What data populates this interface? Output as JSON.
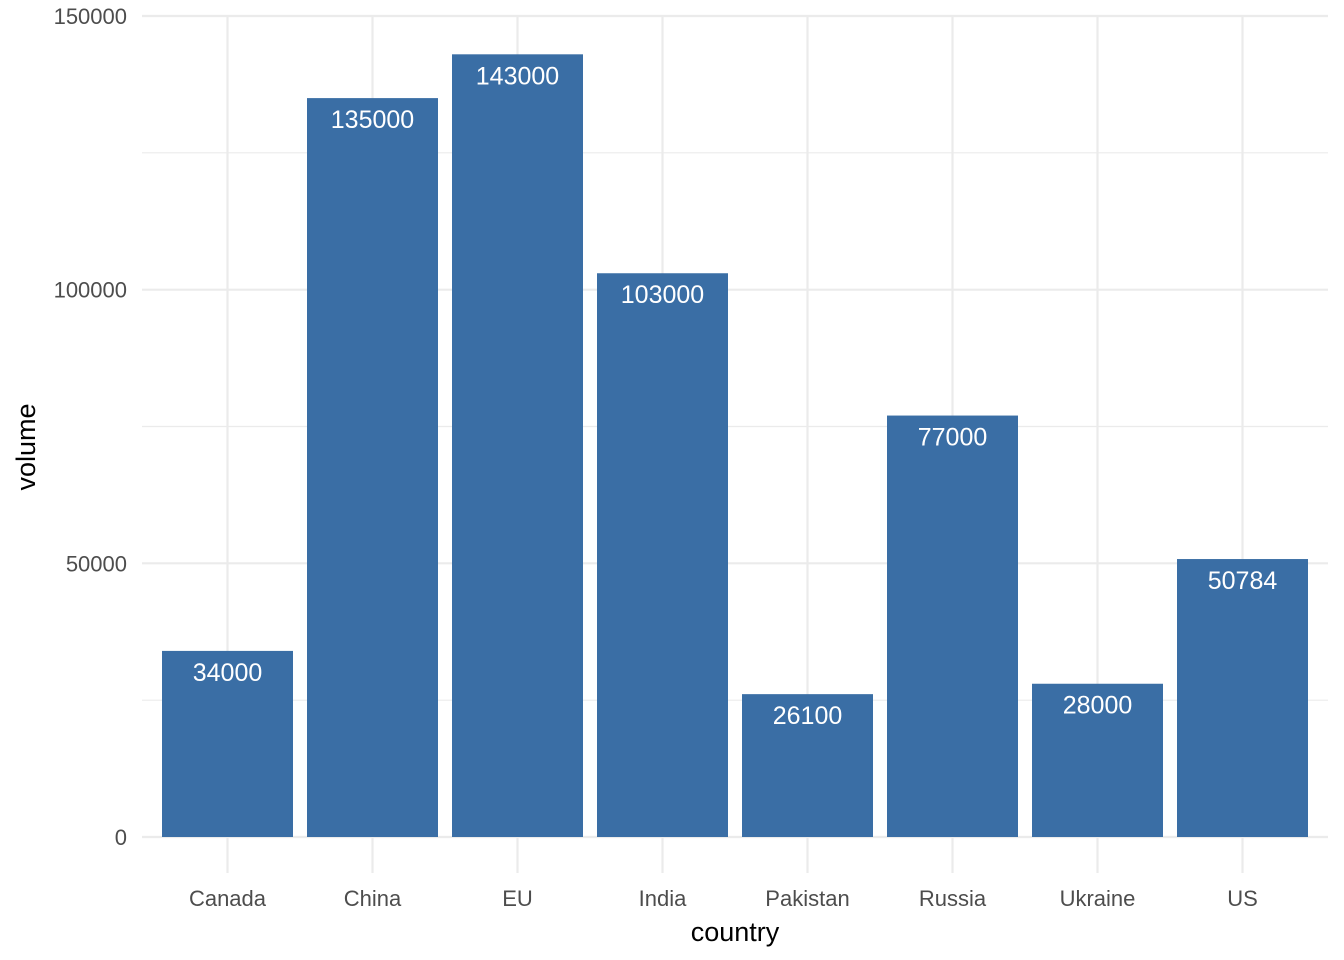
{
  "chart_data": {
    "type": "bar",
    "title": "",
    "xlabel": "country",
    "ylabel": "volume",
    "categories": [
      "Canada",
      "China",
      "EU",
      "India",
      "Pakistan",
      "Russia",
      "Ukraine",
      "US"
    ],
    "values": [
      34000,
      135000,
      143000,
      103000,
      26100,
      77000,
      28000,
      50784
    ],
    "data_labels": [
      "34000",
      "135000",
      "143000",
      "103000",
      "26100",
      "77000",
      "28000",
      "50784"
    ],
    "ylim": [
      0,
      150000
    ],
    "y_ticks": [
      0,
      50000,
      100000,
      150000
    ],
    "y_tick_labels": [
      "0",
      "50000",
      "100000",
      "150000"
    ],
    "y_minor_ticks": [
      25000,
      75000,
      125000
    ],
    "grid": true,
    "legend": "none",
    "colors": {
      "bar": "#3A6EA5",
      "grid": "#EBEBEB",
      "background": "#FFFFFF",
      "data_label": "#FFFFFF"
    }
  }
}
